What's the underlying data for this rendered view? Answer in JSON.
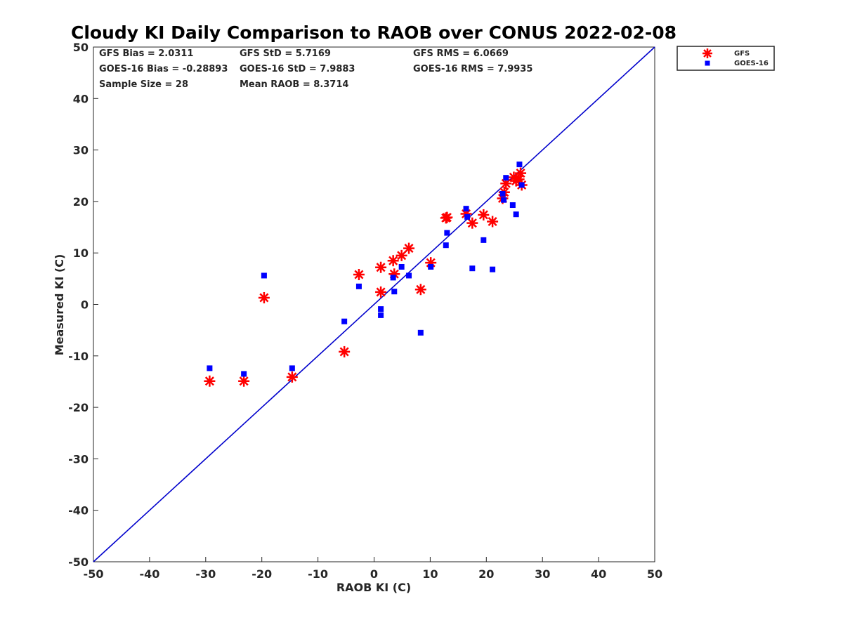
{
  "chart_data": {
    "type": "scatter",
    "title": "Cloudy KI Daily Comparison to RAOB over CONUS 2022-02-08",
    "xlabel": "RAOB KI (C)",
    "ylabel": "Measured KI (C)",
    "xlim": [
      -50,
      50
    ],
    "ylim": [
      -50,
      50
    ],
    "xticks": [
      "-50",
      "-40",
      "-30",
      "-20",
      "-10",
      "0",
      "10",
      "20",
      "30",
      "40",
      "50"
    ],
    "yticks": [
      "-50",
      "-40",
      "-30",
      "-20",
      "-10",
      "0",
      "10",
      "20",
      "30",
      "40",
      "50"
    ],
    "grid": false,
    "legend_position": "outside-top-right",
    "reference_line": {
      "x": [
        -50,
        50
      ],
      "y": [
        -50,
        50
      ],
      "color": "#0000cc"
    },
    "stats": {
      "gfs_bias": "GFS Bias = 2.0311",
      "gfs_std": "GFS StD = 5.7169",
      "gfs_rms": "GFS RMS = 6.0669",
      "goes_bias": "GOES-16 Bias = -0.28893",
      "goes_std": "GOES-16 StD = 7.9883",
      "goes_rms": "GOES-16 RMS = 7.9935",
      "sample_size": "Sample Size = 28",
      "mean_raob": "Mean RAOB = 8.3714"
    },
    "series": [
      {
        "name": "GFS",
        "marker": "asterisk",
        "color": "#ff0000",
        "points": [
          {
            "x": -29.3,
            "y": -14.9
          },
          {
            "x": -23.2,
            "y": -14.9
          },
          {
            "x": -19.6,
            "y": 1.3
          },
          {
            "x": -14.6,
            "y": -14.1
          },
          {
            "x": -5.3,
            "y": -9.2
          },
          {
            "x": -2.7,
            "y": 5.8
          },
          {
            "x": 1.2,
            "y": 7.2
          },
          {
            "x": 1.2,
            "y": 2.4
          },
          {
            "x": 3.4,
            "y": 8.5
          },
          {
            "x": 3.6,
            "y": 5.9
          },
          {
            "x": 4.9,
            "y": 9.5
          },
          {
            "x": 6.2,
            "y": 10.9
          },
          {
            "x": 8.3,
            "y": 2.9
          },
          {
            "x": 10.1,
            "y": 8.1
          },
          {
            "x": 12.8,
            "y": 16.8
          },
          {
            "x": 13.0,
            "y": 16.9
          },
          {
            "x": 16.4,
            "y": 17.6
          },
          {
            "x": 17.5,
            "y": 15.8
          },
          {
            "x": 19.5,
            "y": 17.4
          },
          {
            "x": 21.1,
            "y": 16.1
          },
          {
            "x": 22.9,
            "y": 20.6
          },
          {
            "x": 23.2,
            "y": 21.8
          },
          {
            "x": 23.5,
            "y": 23.5
          },
          {
            "x": 24.9,
            "y": 24.7
          },
          {
            "x": 25.3,
            "y": 24.0
          },
          {
            "x": 25.8,
            "y": 24.3
          },
          {
            "x": 26.1,
            "y": 25.5
          },
          {
            "x": 26.3,
            "y": 23.2
          }
        ]
      },
      {
        "name": "GOES-16",
        "marker": "square",
        "color": "#0000ff",
        "points": [
          {
            "x": -29.3,
            "y": -12.4
          },
          {
            "x": -23.2,
            "y": -13.5
          },
          {
            "x": -19.6,
            "y": 5.6
          },
          {
            "x": -14.6,
            "y": -12.4
          },
          {
            "x": -5.3,
            "y": -3.3
          },
          {
            "x": -2.7,
            "y": 3.5
          },
          {
            "x": 1.2,
            "y": -0.9
          },
          {
            "x": 1.2,
            "y": -2.1
          },
          {
            "x": 3.4,
            "y": 5.2
          },
          {
            "x": 3.6,
            "y": 2.5
          },
          {
            "x": 4.9,
            "y": 7.3
          },
          {
            "x": 6.2,
            "y": 5.6
          },
          {
            "x": 8.3,
            "y": -5.5
          },
          {
            "x": 10.1,
            "y": 7.3
          },
          {
            "x": 12.8,
            "y": 11.5
          },
          {
            "x": 13.0,
            "y": 13.9
          },
          {
            "x": 16.4,
            "y": 18.6
          },
          {
            "x": 16.6,
            "y": 17.0
          },
          {
            "x": 17.5,
            "y": 7.0
          },
          {
            "x": 19.5,
            "y": 12.5
          },
          {
            "x": 21.1,
            "y": 6.8
          },
          {
            "x": 22.9,
            "y": 21.5
          },
          {
            "x": 23.1,
            "y": 20.3
          },
          {
            "x": 23.5,
            "y": 24.6
          },
          {
            "x": 24.7,
            "y": 19.3
          },
          {
            "x": 25.3,
            "y": 17.5
          },
          {
            "x": 25.9,
            "y": 27.2
          },
          {
            "x": 26.3,
            "y": 23.2
          }
        ]
      }
    ]
  }
}
